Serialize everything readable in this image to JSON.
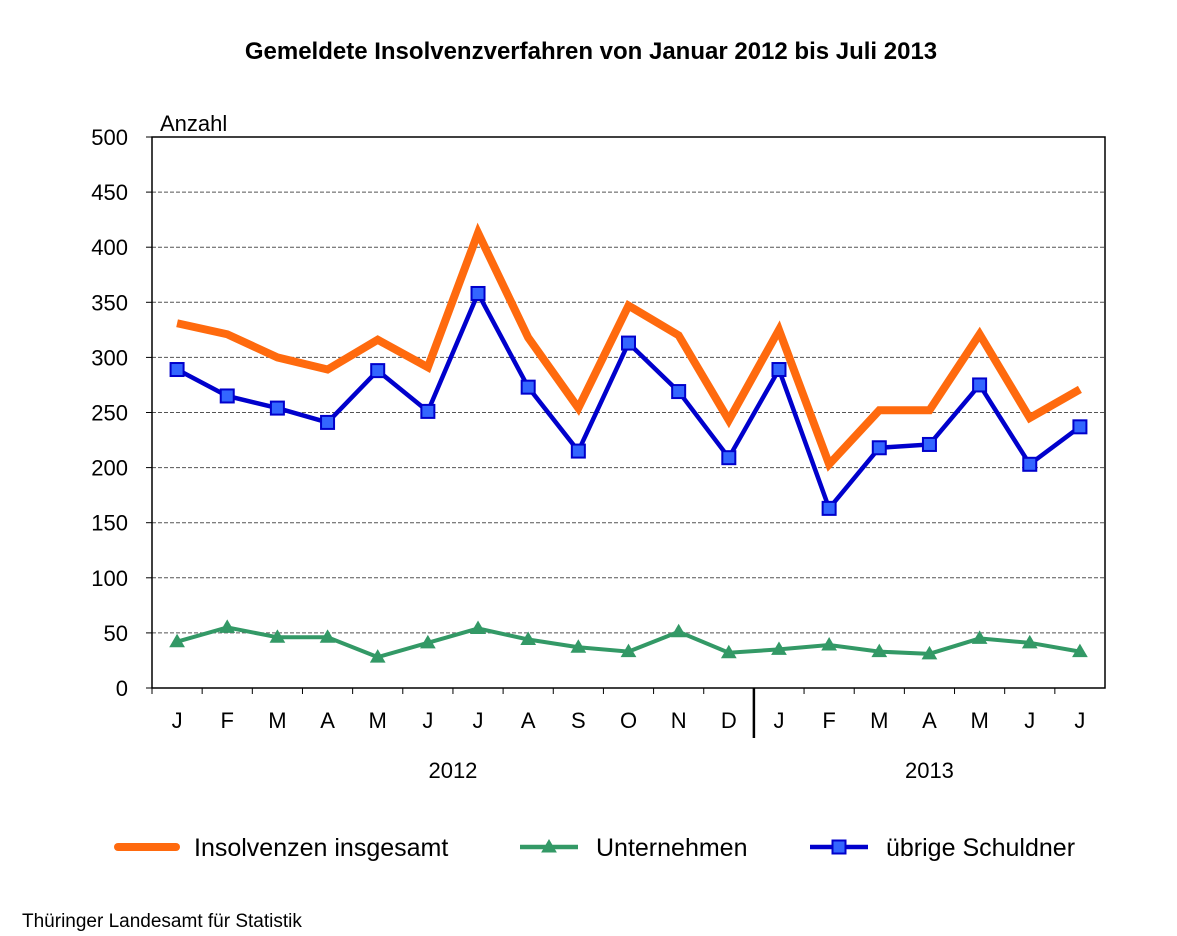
{
  "chart_data": {
    "type": "line",
    "title": "Gemeldete Insolvenzverfahren von Januar 2012 bis Juli 2013",
    "ylabel": "Anzahl",
    "ylim": [
      0,
      500
    ],
    "yticks": [
      0,
      50,
      100,
      150,
      200,
      250,
      300,
      350,
      400,
      450,
      500
    ],
    "grid": true,
    "categories": [
      "J",
      "F",
      "M",
      "A",
      "M",
      "J",
      "J",
      "A",
      "S",
      "O",
      "N",
      "D",
      "J",
      "F",
      "M",
      "A",
      "M",
      "J",
      "J"
    ],
    "year_groups": [
      {
        "label": "2012",
        "count": 12
      },
      {
        "label": "2013",
        "count": 7
      }
    ],
    "legend_position": "bottom",
    "series": [
      {
        "name": "Insolvenzen insgesamt",
        "color": "#FF6A0E",
        "marker": "none",
        "values": [
          331,
          321,
          300,
          289,
          316,
          291,
          413,
          318,
          254,
          347,
          320,
          243,
          325,
          203,
          252,
          252,
          321,
          245,
          271
        ]
      },
      {
        "name": "Unternehmen",
        "color": "#339966",
        "marker": "triangle",
        "values": [
          42,
          55,
          46,
          46,
          28,
          41,
          54,
          44,
          37,
          33,
          51,
          32,
          35,
          39,
          33,
          31,
          45,
          41,
          33
        ]
      },
      {
        "name": "übrige Schuldner",
        "color": "#0000CC",
        "marker_fill": "#3366FF",
        "marker": "square",
        "values": [
          289,
          265,
          254,
          241,
          288,
          251,
          358,
          273,
          215,
          313,
          269,
          209,
          289,
          163,
          218,
          221,
          275,
          203,
          237
        ]
      }
    ],
    "source": "Thüringer Landesamt für Statistik"
  }
}
